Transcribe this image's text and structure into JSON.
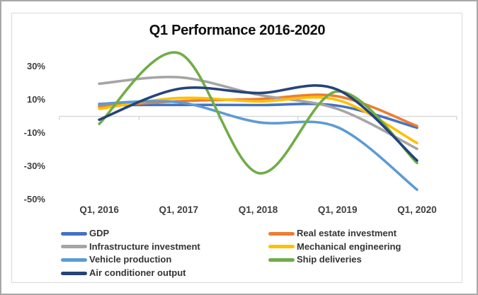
{
  "window": {
    "background": "#ffffff",
    "outer_border_color": "#a8a8a8",
    "frame_border_color": "#d9d9d9"
  },
  "chart_data": {
    "type": "line",
    "smooth": true,
    "title": "Q1 Performance 2016-2020",
    "xlabel": "",
    "ylabel": "",
    "categories": [
      "Q1, 2016",
      "Q1, 2017",
      "Q1, 2018",
      "Q1, 2019",
      "Q1, 2020"
    ],
    "y_tick_labels": [
      "30%",
      "10%",
      "-10%",
      "-30%",
      "-50%"
    ],
    "y_tick_values": [
      30,
      10,
      -10,
      -30,
      -50
    ],
    "ylim": [
      -52,
      40
    ],
    "unit": "percent",
    "grid": "zero-line-only",
    "axis_color": "#d3d3d3",
    "tick_label_color": "#3f3f3f",
    "legend_position": "bottom-two-columns",
    "series": [
      {
        "name": "GDP",
        "color": "#4472C4",
        "values": [
          6.7,
          6.9,
          6.8,
          6.4,
          -6.8
        ]
      },
      {
        "name": "Real estate investment",
        "color": "#ED7D31",
        "values": [
          6.0,
          9.1,
          10.4,
          12.0,
          -5.8
        ]
      },
      {
        "name": "Infrastructure investment",
        "color": "#A5A5A5",
        "values": [
          19.6,
          23.5,
          13.0,
          4.4,
          -19.5
        ]
      },
      {
        "name": "Mechanical engineering",
        "color": "#FFC000",
        "values": [
          4.5,
          11.0,
          9.0,
          9.8,
          -16.0
        ]
      },
      {
        "name": "Vehicle production",
        "color": "#5B9BD5",
        "values": [
          7.5,
          8.5,
          -3.5,
          -6.5,
          -44.0
        ]
      },
      {
        "name": "Ship deliveries",
        "color": "#70AD47",
        "values": [
          -4.5,
          38.0,
          -34.0,
          15.0,
          -28.0
        ]
      },
      {
        "name": "Air conditioner output",
        "color": "#264478",
        "values": [
          -2.0,
          16.5,
          14.0,
          16.0,
          -26.5
        ]
      }
    ]
  }
}
